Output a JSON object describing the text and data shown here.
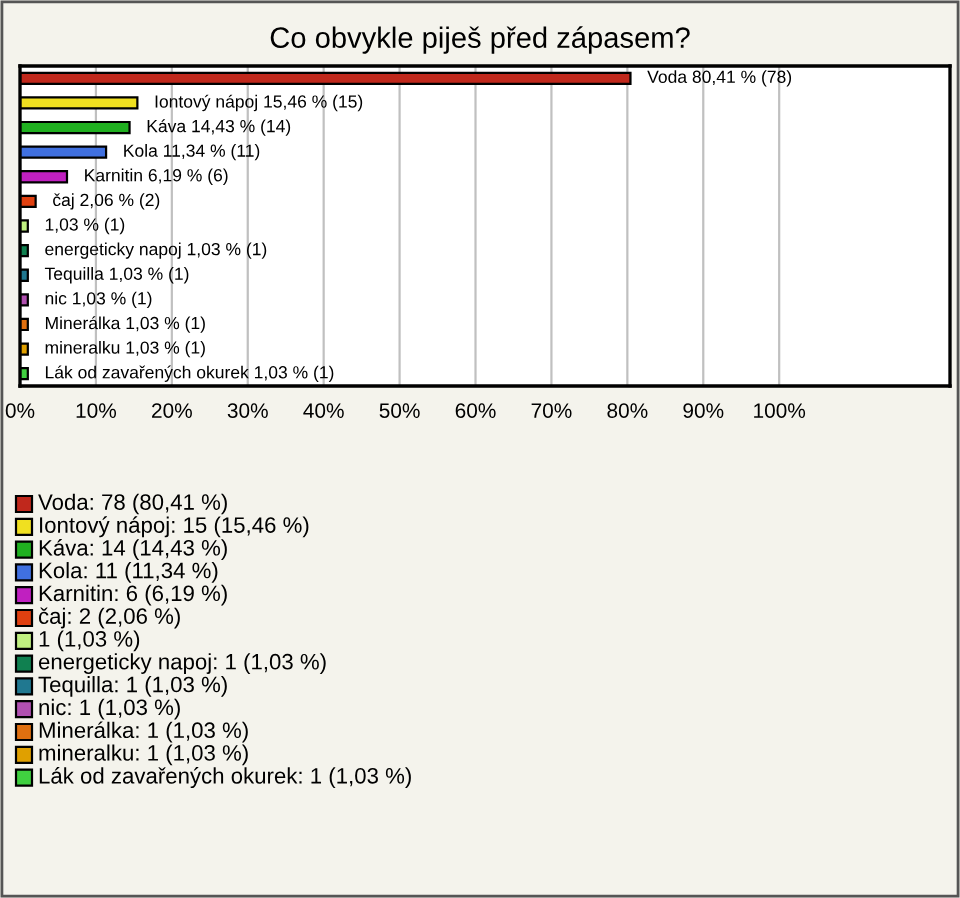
{
  "chart_data": {
    "type": "bar",
    "orientation": "horizontal",
    "title": "Co obvykle piješ před zápasem?",
    "categories": [
      "Voda",
      "Iontový nápoj",
      "Káva",
      "Kola",
      "Karnitin",
      "čaj",
      null,
      "energeticky napoj",
      "Tequilla",
      "nic",
      "Minerálka",
      "mineralku",
      "Lák od zavařených okurek"
    ],
    "values": [
      80.41,
      15.46,
      14.43,
      11.34,
      6.19,
      2.06,
      1.03,
      1.03,
      1.03,
      1.03,
      1.03,
      1.03,
      1.03
    ],
    "value_labels": [
      "80,41 % (78)",
      "15,46 % (15)",
      "14,43 % (14)",
      "11,34 % (11)",
      "6,19 % (6)",
      "2,06 % (2)",
      "1,03 % (1)",
      "1,03 % (1)",
      "1,03 % (1)",
      "1,03 % (1)",
      "1,03 % (1)",
      "1,03 % (1)",
      "1,03 % (1)"
    ],
    "colors": [
      "#c0281c",
      "#f0e020",
      "#20b020",
      "#4070e0",
      "#c020c0",
      "#e04010",
      "#c0f080",
      "#108050",
      "#207890",
      "#b050b0",
      "#e07010",
      "#e0a000",
      "#40d040"
    ],
    "xlim": [
      0,
      122.5
    ],
    "xticks": [
      {
        "value": 0,
        "label": "0%"
      },
      {
        "value": 10,
        "label": "10%"
      },
      {
        "value": 20,
        "label": "20%"
      },
      {
        "value": 30,
        "label": "30%"
      },
      {
        "value": 40,
        "label": "40%"
      },
      {
        "value": 50,
        "label": "50%"
      },
      {
        "value": 60,
        "label": "60%"
      },
      {
        "value": 70,
        "label": "70%"
      },
      {
        "value": 80,
        "label": "80%"
      },
      {
        "value": 90,
        "label": "90%"
      },
      {
        "value": 100,
        "label": "100%"
      }
    ],
    "tick_labels": "x",
    "grid": "x",
    "annotations": [
      "Voda: 78 (80,41 %)",
      "Iontový nápoj: 15 (15,46 %)",
      "Káva: 14 (14,43 %)",
      "Kola: 11 (11,34 %)",
      "Karnitin: 6 (6,19 %)",
      "čaj: 2 (2,06 %)",
      "1 (1,03 %)",
      "energeticky napoj: 1 (1,03 %)",
      "Tequilla: 1 (1,03 %)",
      "nic: 1 (1,03 %)",
      "Minerálka: 1 (1,03 %)",
      "mineralku: 1 (1,03 %)",
      "Lák od zavařených okurek: 1 (1,03 %)"
    ]
  }
}
